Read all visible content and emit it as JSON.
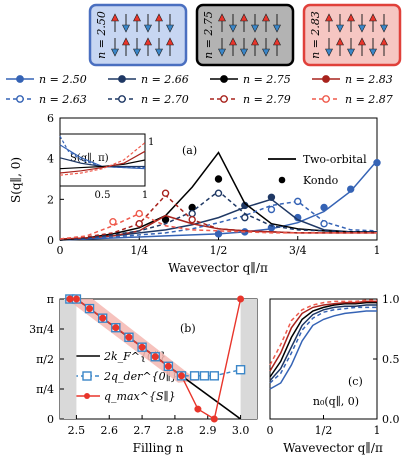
{
  "insets": [
    {
      "label": "n = 2.50",
      "fill": "#c7d6f2",
      "stroke": "#4a6fc0"
    },
    {
      "label": "n = 2.75",
      "fill": "#b3b3b3",
      "stroke": "#000000"
    },
    {
      "label": "n = 2.83",
      "fill": "#f6c6c2",
      "stroke": "#e0403a"
    }
  ],
  "legend": [
    {
      "label": "n = 2.50",
      "color": "#3563b5",
      "style": "solid",
      "marker": "filled"
    },
    {
      "label": "n = 2.66",
      "color": "#1f3864",
      "style": "solid",
      "marker": "filled"
    },
    {
      "label": "n = 2.75",
      "color": "#000000",
      "style": "solid",
      "marker": "filled"
    },
    {
      "label": "n = 2.83",
      "color": "#a8231d",
      "style": "solid",
      "marker": "filled"
    },
    {
      "label": "n = 2.63",
      "color": "#3563b5",
      "style": "dashed",
      "marker": "open"
    },
    {
      "label": "n = 2.70",
      "color": "#1f3864",
      "style": "dashed",
      "marker": "open"
    },
    {
      "label": "n = 2.79",
      "color": "#a8231d",
      "style": "dashed",
      "marker": "open"
    },
    {
      "label": "n = 2.87",
      "color": "#ef5a4c",
      "style": "dashed",
      "marker": "open"
    }
  ],
  "chart_data": [
    {
      "type": "line",
      "panel": "(a)",
      "ylabel": "S(q∥, 0)",
      "xlabel": "Wavevector q∥/π",
      "xlim": [
        0,
        1
      ],
      "ylim": [
        0,
        6
      ],
      "xticks": [
        "0",
        "1/4",
        "1/2",
        "3/4",
        "1"
      ],
      "yticks": [
        "0",
        "2",
        "4",
        "6"
      ],
      "legend_lines": [
        "Two-orbital",
        "Kondo"
      ],
      "series": [
        {
          "name": "n = 2.50",
          "color": "#3563b5",
          "dash": false,
          "x": [
            0,
            0.083,
            0.167,
            0.25,
            0.333,
            0.417,
            0.5,
            0.583,
            0.667,
            0.75,
            0.833,
            0.917,
            1.0
          ],
          "y": [
            0,
            0.05,
            0.1,
            0.15,
            0.2,
            0.25,
            0.3,
            0.4,
            0.55,
            0.85,
            1.4,
            2.4,
            3.9
          ],
          "kx": [
            0.5,
            0.583,
            0.667,
            0.75,
            0.833,
            0.917,
            1.0
          ],
          "ky": [
            0.3,
            0.4,
            0.6,
            1.1,
            1.6,
            2.5,
            3.8
          ]
        },
        {
          "name": "n = 2.66",
          "color": "#1f3864",
          "dash": false,
          "x": [
            0,
            0.083,
            0.167,
            0.25,
            0.333,
            0.417,
            0.5,
            0.583,
            0.667,
            0.75,
            0.833,
            0.917,
            1.0
          ],
          "y": [
            0,
            0.1,
            0.2,
            0.35,
            0.5,
            0.75,
            1.1,
            1.6,
            2.0,
            1.0,
            0.5,
            0.4,
            0.4
          ],
          "kx": [
            0.583,
            0.667
          ],
          "ky": [
            1.7,
            2.1
          ]
        },
        {
          "name": "n = 2.75",
          "color": "#000000",
          "dash": false,
          "x": [
            0,
            0.083,
            0.167,
            0.25,
            0.333,
            0.417,
            0.5,
            0.583,
            0.667,
            0.75,
            0.833,
            0.917,
            1.0
          ],
          "y": [
            0,
            0.1,
            0.3,
            0.6,
            1.2,
            2.6,
            4.3,
            1.8,
            0.8,
            0.55,
            0.45,
            0.4,
            0.4
          ],
          "kx": [
            0.333,
            0.417,
            0.5
          ],
          "ky": [
            1.0,
            1.6,
            3.0
          ]
        },
        {
          "name": "n = 2.83",
          "color": "#a8231d",
          "dash": false,
          "x": [
            0,
            0.083,
            0.167,
            0.25,
            0.333,
            0.417,
            0.5,
            0.583,
            0.667,
            0.75,
            0.833,
            0.917,
            1.0
          ],
          "y": [
            0.05,
            0.1,
            0.2,
            0.45,
            1.2,
            0.8,
            0.55,
            0.45,
            0.4,
            0.35,
            0.35,
            0.35,
            0.35
          ],
          "kx": [],
          "ky": []
        },
        {
          "name": "n = 2.63",
          "color": "#3563b5",
          "dash": true,
          "x": [
            0,
            0.083,
            0.167,
            0.25,
            0.333,
            0.417,
            0.5,
            0.583,
            0.667,
            0.75,
            0.833,
            0.917,
            1.0
          ],
          "y": [
            0.05,
            0.1,
            0.15,
            0.25,
            0.35,
            0.55,
            0.85,
            1.2,
            1.7,
            1.9,
            0.9,
            0.5,
            0.45
          ],
          "kx": [
            0.667,
            0.75,
            0.833
          ],
          "ky": [
            1.5,
            1.9,
            0.8
          ]
        },
        {
          "name": "n = 2.70",
          "color": "#1f3864",
          "dash": true,
          "x": [
            0,
            0.083,
            0.167,
            0.25,
            0.333,
            0.417,
            0.5,
            0.583,
            0.667,
            0.75,
            0.833,
            0.917,
            1.0
          ],
          "y": [
            0.05,
            0.1,
            0.25,
            0.45,
            0.8,
            1.4,
            2.4,
            1.3,
            0.7,
            0.5,
            0.45,
            0.4,
            0.4
          ],
          "kx": [
            0.417,
            0.5,
            0.583
          ],
          "ky": [
            1.3,
            2.3,
            1.1
          ]
        },
        {
          "name": "n = 2.79",
          "color": "#a8231d",
          "dash": true,
          "x": [
            0,
            0.083,
            0.167,
            0.25,
            0.333,
            0.417,
            0.5,
            0.583,
            0.667,
            0.75,
            0.833,
            0.917,
            1.0
          ],
          "y": [
            0.05,
            0.15,
            0.35,
            0.8,
            2.2,
            1.0,
            0.55,
            0.45,
            0.4,
            0.35,
            0.35,
            0.35,
            0.35
          ],
          "kx": [
            0.25,
            0.333,
            0.417
          ],
          "ky": [
            0.8,
            2.3,
            1.0
          ]
        },
        {
          "name": "n = 2.87",
          "color": "#ef5a4c",
          "dash": true,
          "x": [
            0,
            0.083,
            0.167,
            0.25,
            0.333,
            0.417,
            0.5,
            0.583,
            0.667,
            0.75,
            0.833,
            0.917,
            1.0
          ],
          "y": [
            0.05,
            0.2,
            0.7,
            1.3,
            0.7,
            0.5,
            0.45,
            0.4,
            0.35,
            0.35,
            0.35,
            0.35,
            0.35
          ],
          "kx": [
            0.167,
            0.25
          ],
          "ky": [
            0.9,
            1.3
          ]
        }
      ]
    },
    {
      "type": "line",
      "panel": "inset of (a)",
      "ylabel": "S(q∥, π)",
      "xticks": [
        "0.5",
        "1"
      ],
      "yticks": [
        "1"
      ],
      "xlim": [
        0,
        1
      ],
      "ylim": [
        0,
        2.4
      ],
      "series": [
        {
          "name": "n = 2.50",
          "color": "#3563b5",
          "x": [
            0,
            0.25,
            0.5,
            0.75,
            1.0
          ],
          "y": [
            1.9,
            1.3,
            0.9,
            0.85,
            0.8
          ]
        },
        {
          "name": "n = 2.63",
          "color": "#3563b5",
          "dash": true,
          "x": [
            0,
            0.1,
            0.25,
            0.5,
            0.75,
            1.0
          ],
          "y": [
            2.3,
            1.6,
            1.2,
            0.9,
            0.85,
            0.85
          ]
        },
        {
          "name": "n = 2.66",
          "color": "#1f3864",
          "x": [
            0,
            0.25,
            0.5,
            0.75,
            1.0
          ],
          "y": [
            1.3,
            1.05,
            0.9,
            0.9,
            0.9
          ]
        },
        {
          "name": "n = 2.75",
          "color": "#000000",
          "x": [
            0,
            0.25,
            0.5,
            0.75,
            1.0
          ],
          "y": [
            0.8,
            0.85,
            0.9,
            1.0,
            1.2
          ]
        },
        {
          "name": "n = 2.83",
          "color": "#a8231d",
          "x": [
            0,
            0.25,
            0.5,
            0.75,
            1.0
          ],
          "y": [
            0.6,
            0.7,
            0.85,
            1.05,
            1.6
          ]
        },
        {
          "name": "n = 2.87",
          "color": "#ef5a4c",
          "dash": true,
          "x": [
            0,
            0.25,
            0.5,
            0.75,
            1.0
          ],
          "y": [
            0.5,
            0.6,
            0.8,
            1.2,
            2.0
          ]
        }
      ]
    },
    {
      "type": "line",
      "panel": "(b)",
      "xlabel": "Filling n",
      "xlim": [
        2.45,
        3.05
      ],
      "ylim": [
        0,
        3.1416
      ],
      "xticks": [
        "2.5",
        "2.6",
        "2.7",
        "2.8",
        "2.9",
        "3.0"
      ],
      "yticks": [
        "0",
        "π/4",
        "π/2",
        "3π/4",
        "π"
      ],
      "series": [
        {
          "name": "2k_F^{0∥}",
          "color": "#000000",
          "x": [
            2.5,
            3.0
          ],
          "y": [
            3.1416,
            0
          ]
        },
        {
          "name": "2q_der^{0∥}",
          "color": "#3a86c8",
          "dash": true,
          "x": [
            2.48,
            2.5,
            2.54,
            2.58,
            2.62,
            2.66,
            2.7,
            2.74,
            2.78,
            2.82,
            2.86,
            2.89,
            2.92,
            3.0
          ],
          "y": [
            3.1416,
            3.1416,
            2.89,
            2.64,
            2.39,
            2.14,
            1.88,
            1.63,
            1.38,
            1.13,
            1.13,
            1.13,
            1.13,
            1.29
          ]
        },
        {
          "name": "q_max^{S∥}",
          "color": "#e8352b",
          "x": [
            2.48,
            2.5,
            2.54,
            2.58,
            2.62,
            2.66,
            2.7,
            2.74,
            2.78,
            2.82,
            2.87,
            2.92,
            3.0
          ],
          "y": [
            3.1416,
            3.1416,
            2.89,
            2.64,
            2.39,
            2.14,
            1.88,
            1.63,
            1.38,
            1.13,
            0.26,
            0,
            3.1416
          ]
        }
      ]
    },
    {
      "type": "line",
      "panel": "(c)",
      "ylabel": "n₀(q∥, 0)",
      "xlabel": "Wavevector q∥/π",
      "xlim": [
        0,
        1
      ],
      "ylim": [
        0,
        1
      ],
      "xticks": [
        "0",
        "1/2",
        "1"
      ],
      "yticks": [
        "0.0",
        "0.5",
        "1.0"
      ],
      "series": [
        {
          "name": "n = 2.50",
          "color": "#3563b5",
          "x": [
            0,
            0.1,
            0.2,
            0.3,
            0.4,
            0.5,
            0.6,
            0.7,
            0.8,
            0.9,
            1.0
          ],
          "y": [
            0.25,
            0.3,
            0.45,
            0.65,
            0.78,
            0.83,
            0.86,
            0.88,
            0.89,
            0.9,
            0.9
          ]
        },
        {
          "name": "n = 2.63",
          "color": "#3563b5",
          "dash": true,
          "x": [
            0,
            0.1,
            0.2,
            0.3,
            0.4,
            0.5,
            0.6,
            0.7,
            0.8,
            0.9,
            1.0
          ],
          "y": [
            0.3,
            0.38,
            0.55,
            0.74,
            0.84,
            0.89,
            0.91,
            0.92,
            0.93,
            0.93,
            0.93
          ]
        },
        {
          "name": "n = 2.66",
          "color": "#1f3864",
          "x": [
            0,
            0.1,
            0.2,
            0.3,
            0.4,
            0.5,
            0.6,
            0.7,
            0.8,
            0.9,
            1.0
          ],
          "y": [
            0.32,
            0.42,
            0.6,
            0.78,
            0.87,
            0.91,
            0.93,
            0.94,
            0.94,
            0.95,
            0.95
          ]
        },
        {
          "name": "n = 2.75",
          "color": "#000000",
          "x": [
            0,
            0.1,
            0.2,
            0.3,
            0.4,
            0.5,
            0.6,
            0.7,
            0.8,
            0.9,
            1.0
          ],
          "y": [
            0.35,
            0.48,
            0.68,
            0.83,
            0.9,
            0.93,
            0.95,
            0.96,
            0.96,
            0.97,
            0.97
          ]
        },
        {
          "name": "n = 2.83",
          "color": "#a8231d",
          "x": [
            0,
            0.1,
            0.2,
            0.3,
            0.4,
            0.5,
            0.6,
            0.7,
            0.8,
            0.9,
            1.0
          ],
          "y": [
            0.4,
            0.55,
            0.76,
            0.88,
            0.93,
            0.95,
            0.96,
            0.97,
            0.97,
            0.98,
            0.98
          ]
        },
        {
          "name": "n = 2.87",
          "color": "#ef5a4c",
          "dash": true,
          "x": [
            0,
            0.1,
            0.2,
            0.3,
            0.4,
            0.5,
            0.6,
            0.7,
            0.8,
            0.9,
            1.0
          ],
          "y": [
            0.45,
            0.62,
            0.82,
            0.91,
            0.95,
            0.97,
            0.98,
            0.98,
            0.98,
            0.99,
            0.99
          ]
        }
      ]
    }
  ]
}
